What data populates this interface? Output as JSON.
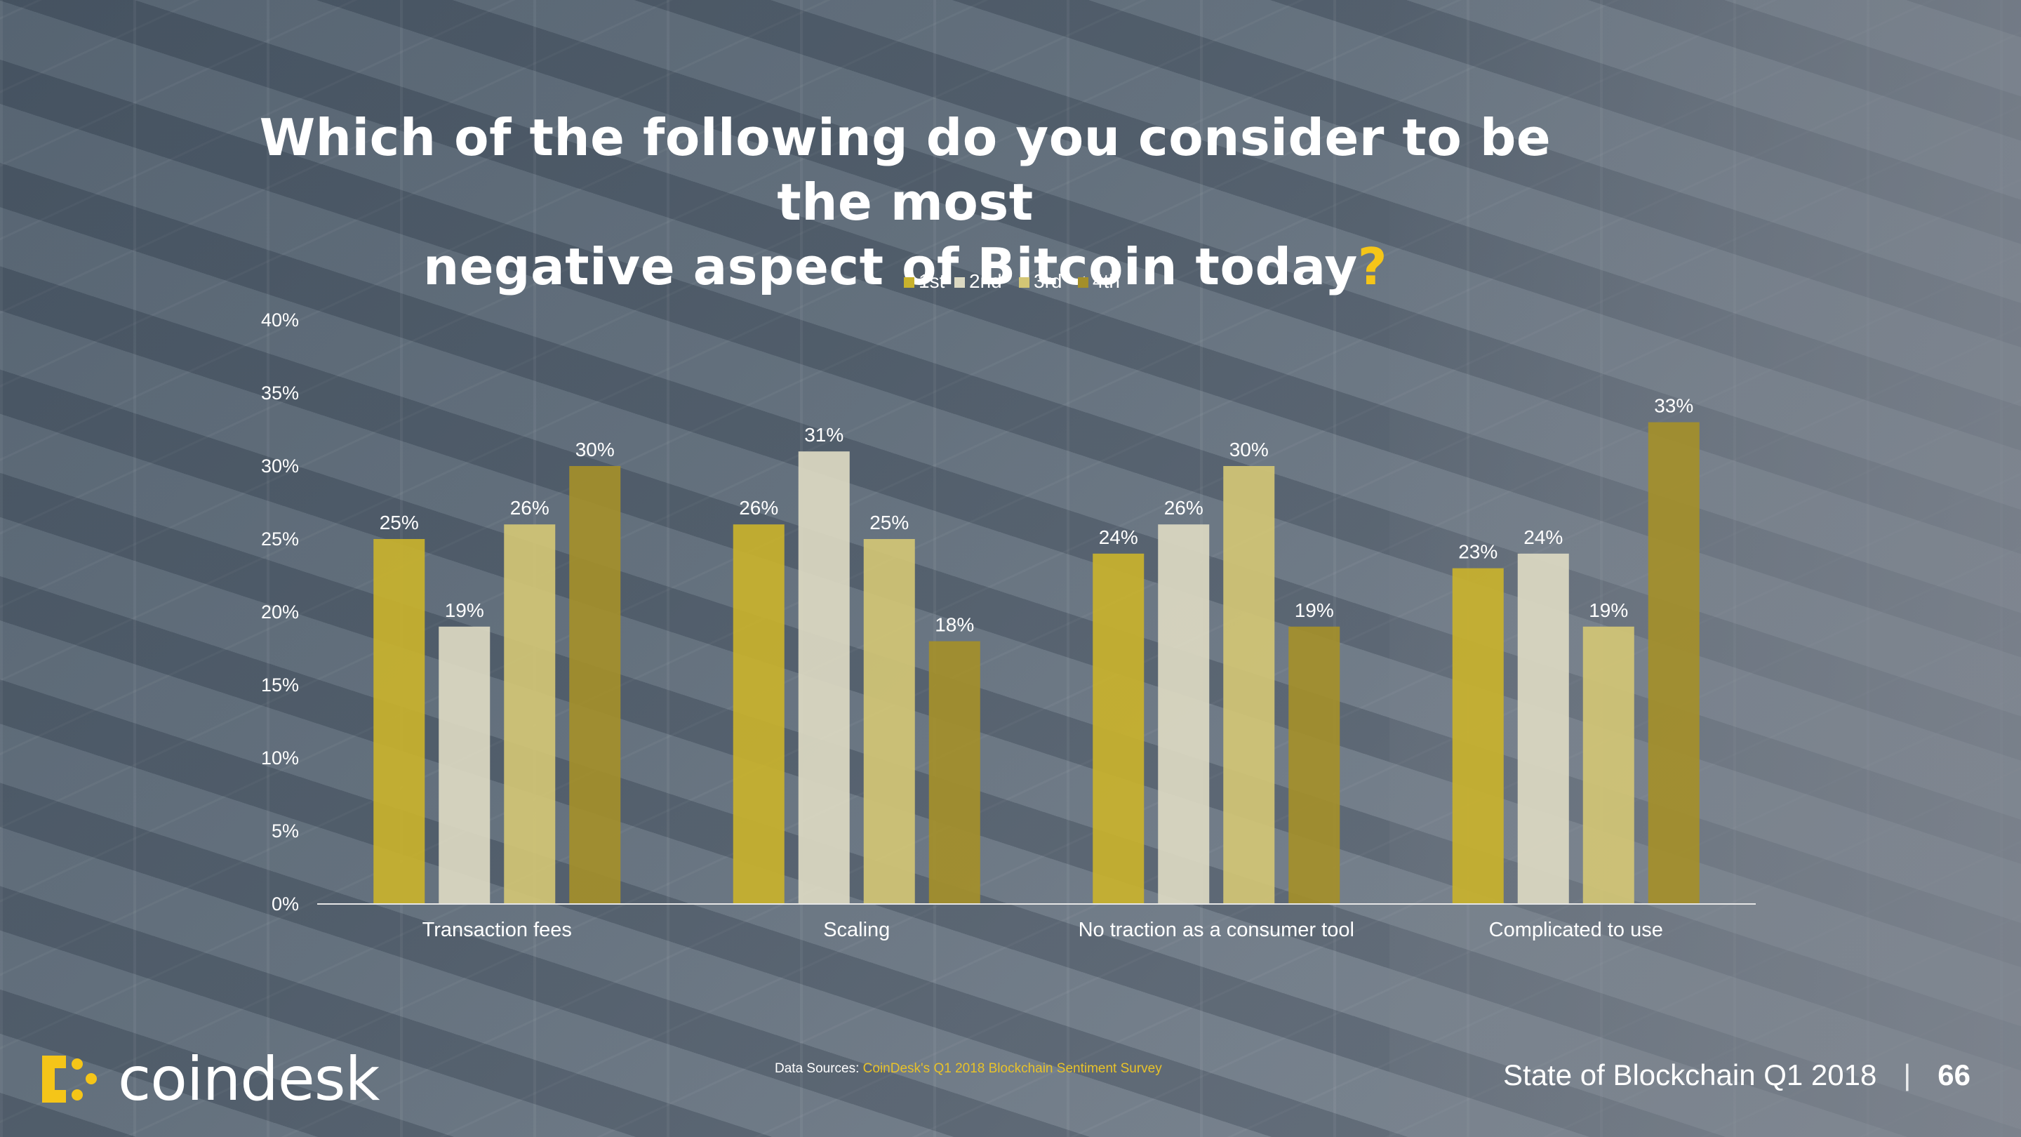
{
  "title": {
    "line1": "Which of the following do you consider to be the most",
    "line2": "negative aspect of Bitcoin today",
    "mark": "?"
  },
  "chart_data": {
    "type": "bar",
    "categories": [
      "Transaction fees",
      "Scaling",
      "No traction as a consumer tool",
      "Complicated to use"
    ],
    "series": [
      {
        "name": "1st",
        "values": [
          25,
          26,
          24,
          23
        ],
        "color": "#c9b22c"
      },
      {
        "name": "2nd",
        "values": [
          19,
          31,
          26,
          24
        ],
        "color": "#dcd9c2"
      },
      {
        "name": "3rd",
        "values": [
          26,
          25,
          30,
          19
        ],
        "color": "#d3c675"
      },
      {
        "name": "4th",
        "values": [
          30,
          18,
          19,
          33
        ],
        "color": "#a48f2a"
      }
    ],
    "value_suffix": "%",
    "ylim": [
      0,
      40
    ],
    "yticks": [
      0,
      5,
      10,
      15,
      20,
      25,
      30,
      35,
      40
    ],
    "legend_position": "top-center",
    "grid": false
  },
  "footer": {
    "logo_text": "coindesk",
    "source_label": "Data Sources: ",
    "source_value": "CoinDesk's Q1 2018 Blockchain Sentiment Survey",
    "report": "State of Blockchain Q1 2018",
    "separator": "|",
    "page_number": "66"
  },
  "colors": {
    "accent": "#f5c518"
  }
}
